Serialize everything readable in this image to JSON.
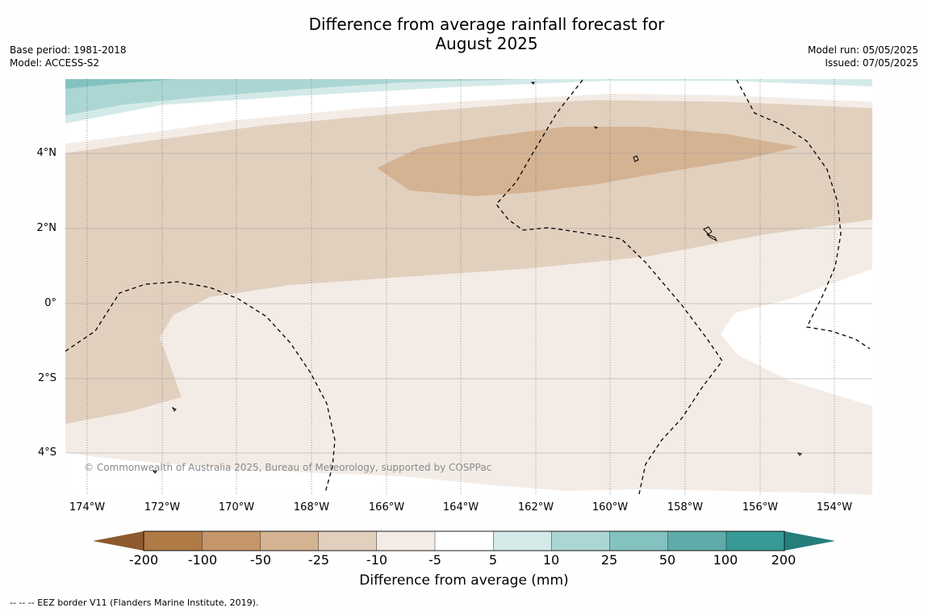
{
  "title_line1": "Difference from average rainfall forecast for",
  "title_line2": "August 2025",
  "base_period": "Base period: 1981-2018",
  "model": "Model: ACCESS-S2",
  "model_run": "Model run: 05/05/2025",
  "issued": "Issued: 07/05/2025",
  "lat_labels": [
    "4°N",
    "2°N",
    "0°",
    "2°S",
    "4°S"
  ],
  "lon_labels": [
    "174°W",
    "172°W",
    "170°W",
    "168°W",
    "166°W",
    "164°W",
    "162°W",
    "160°W",
    "158°W",
    "156°W",
    "154°W"
  ],
  "copyright": "© Commonwealth of Australia 2025, Bureau of Meteorology, supported by COSPPac",
  "colorbar": {
    "ticks": [
      "-200",
      "-100",
      "-50",
      "-25",
      "-10",
      "-5",
      "5",
      "10",
      "25",
      "50",
      "100",
      "200"
    ],
    "colors": [
      "#8c5a2d",
      "#b07a45",
      "#c4966a",
      "#d4b393",
      "#e2d0bf",
      "#f3ece6",
      "#ffffff",
      "#d4eae8",
      "#acd6d4",
      "#84c2bf",
      "#5fabaa",
      "#379a96",
      "#257e7c"
    ],
    "title": "Difference from average (mm)"
  },
  "footnote": "--  --  -- EEZ border V11 (Flanders Marine Institute, 2019)."
}
